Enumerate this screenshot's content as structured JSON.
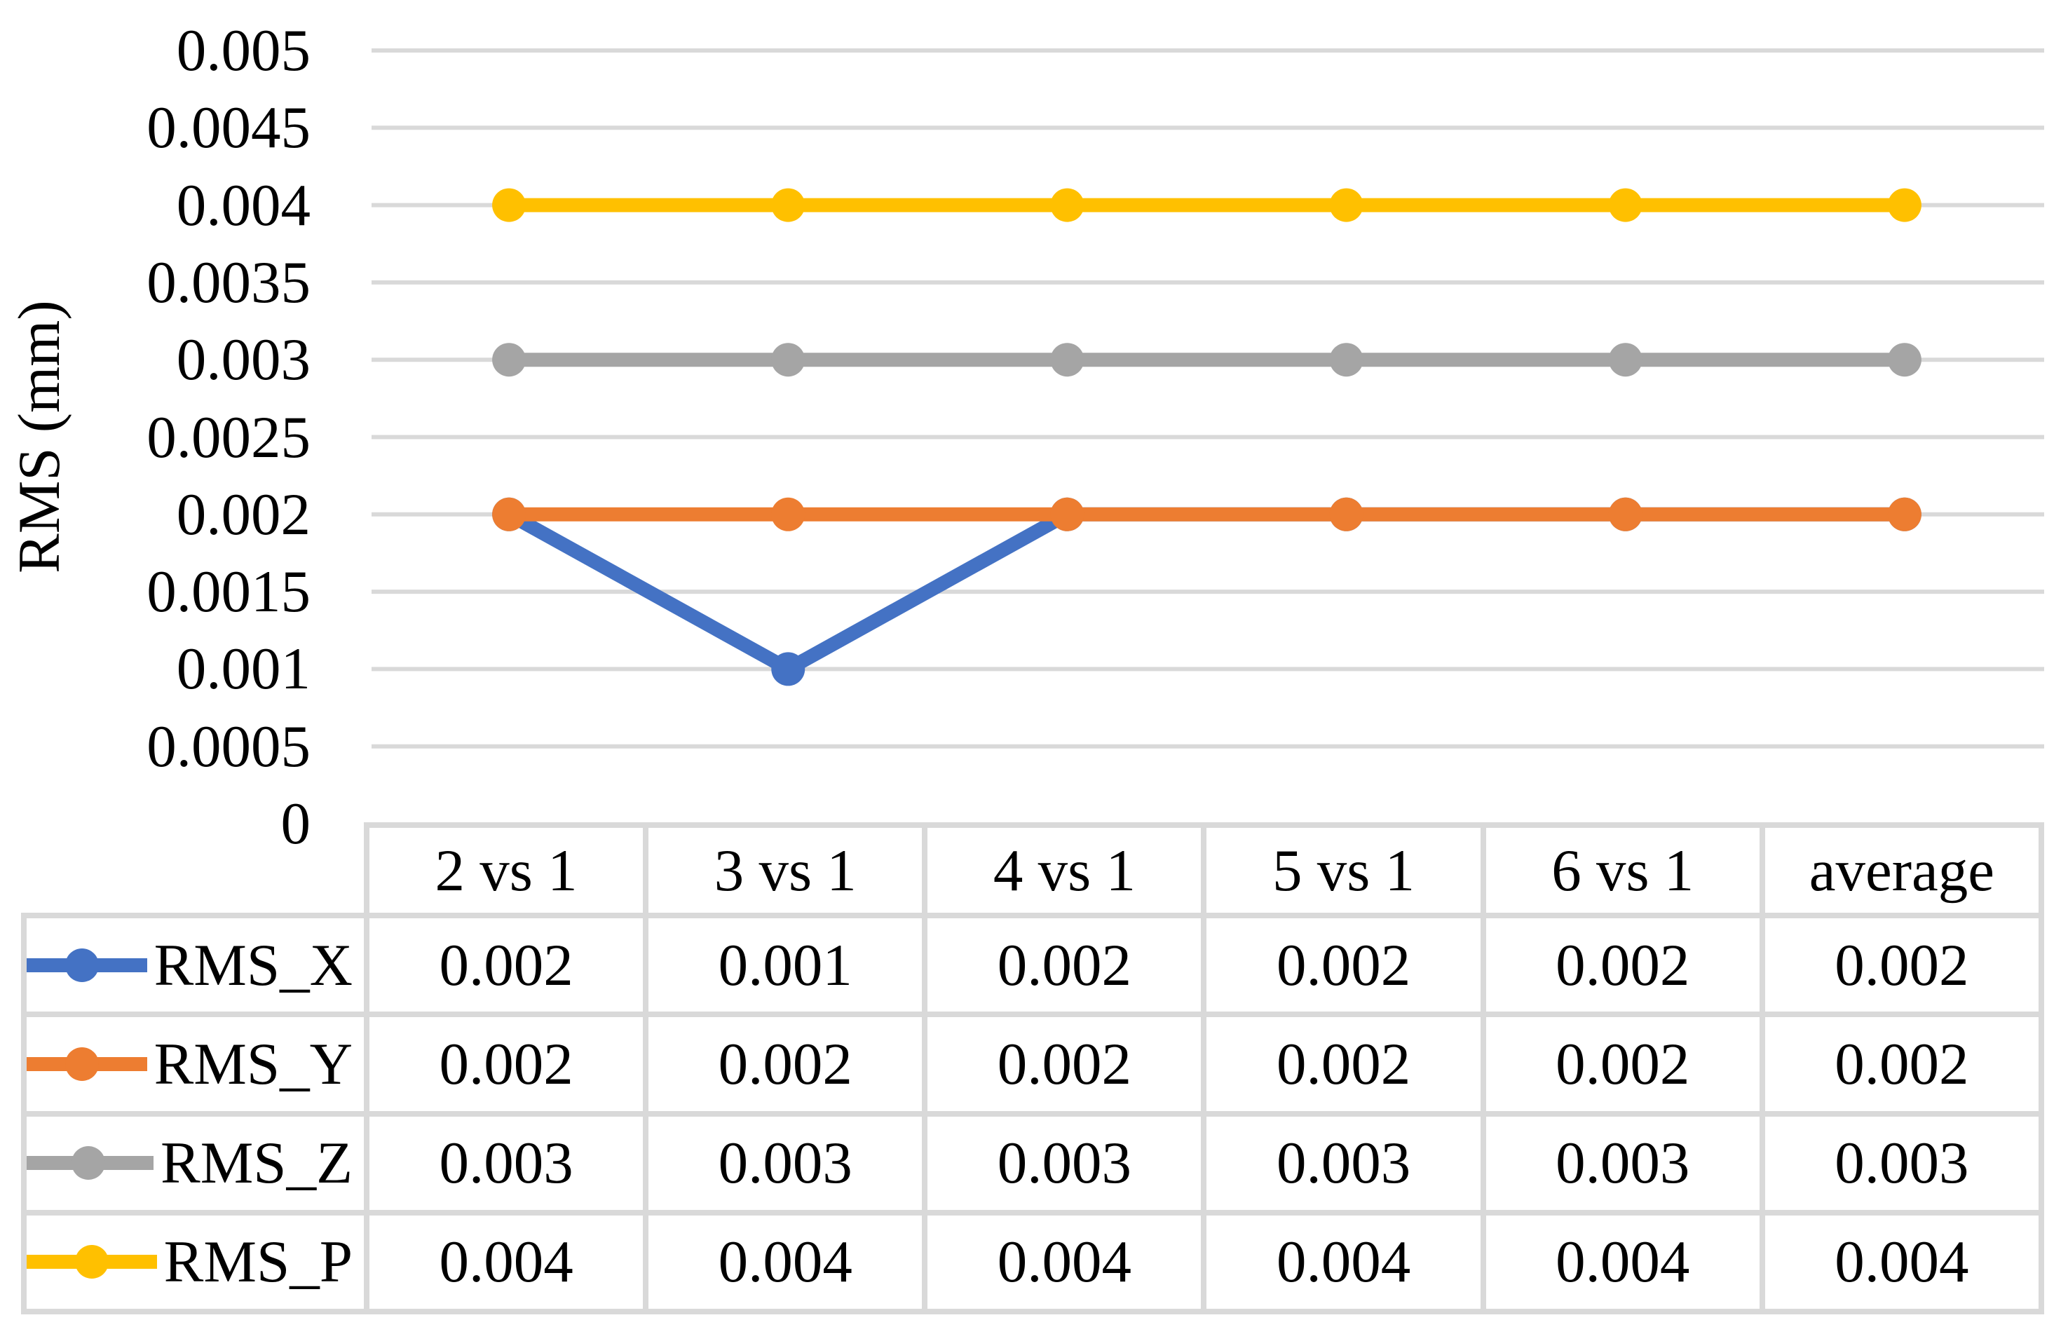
{
  "chart_data": {
    "type": "line",
    "title": "",
    "ylabel": "RMS (mm)",
    "xlabel": "",
    "categories": [
      "2 vs 1",
      "3 vs 1",
      "4 vs 1",
      "5 vs 1",
      "6 vs 1",
      "average"
    ],
    "series": [
      {
        "name": "RMS_X",
        "color": "#4472C4",
        "values": [
          0.002,
          0.001,
          0.002,
          0.002,
          0.002,
          0.002
        ]
      },
      {
        "name": "RMS_Y",
        "color": "#ED7D31",
        "values": [
          0.002,
          0.002,
          0.002,
          0.002,
          0.002,
          0.002
        ]
      },
      {
        "name": "RMS_Z",
        "color": "#A5A5A5",
        "values": [
          0.003,
          0.003,
          0.003,
          0.003,
          0.003,
          0.003
        ]
      },
      {
        "name": "RMS_P",
        "color": "#FFC000",
        "values": [
          0.004,
          0.004,
          0.004,
          0.004,
          0.004,
          0.004
        ]
      }
    ],
    "y_axis": {
      "min": 0,
      "max": 0.005,
      "step": 0.0005,
      "tick_labels": [
        "0",
        "0.0005",
        "0.001",
        "0.0015",
        "0.002",
        "0.0025",
        "0.003",
        "0.0035",
        "0.004",
        "0.0045",
        "0.005"
      ]
    },
    "grid": true,
    "marker": "circle",
    "legend_position": "data-table-left",
    "data_table_shown": true
  },
  "colors": {
    "grid": "#D9D9D9",
    "table_border": "#D9D9D9",
    "background": "#FFFFFF",
    "text": "#000000"
  }
}
